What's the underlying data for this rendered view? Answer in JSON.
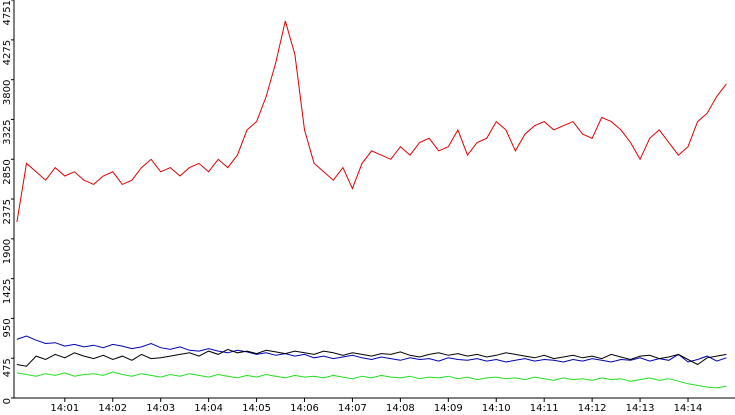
{
  "chart_data": {
    "type": "line",
    "x": [
      0,
      0.2,
      0.4,
      0.6,
      0.8,
      1,
      1.2,
      1.4,
      1.6,
      1.8,
      2,
      2.2,
      2.4,
      2.6,
      2.8,
      3,
      3.2,
      3.4,
      3.6,
      3.8,
      4,
      4.2,
      4.4,
      4.6,
      4.8,
      5,
      5.2,
      5.4,
      5.6,
      5.8,
      6,
      6.2,
      6.4,
      6.6,
      6.8,
      7,
      7.2,
      7.4,
      7.6,
      7.8,
      8,
      8.2,
      8.4,
      8.6,
      8.8,
      9,
      9.2,
      9.4,
      9.6,
      9.8,
      10,
      10.2,
      10.4,
      10.6,
      10.8,
      11,
      11.2,
      11.4,
      11.6,
      11.8,
      12,
      12.2,
      12.4,
      12.6,
      12.8,
      13,
      13.2,
      13.4,
      13.6,
      13.8,
      14,
      14.2,
      14.4,
      14.6,
      14.8
    ],
    "series": [
      {
        "color": "#e00000",
        "values": [
          2100,
          2800,
          2700,
          2600,
          2750,
          2650,
          2700,
          2600,
          2550,
          2650,
          2700,
          2550,
          2600,
          2750,
          2850,
          2700,
          2750,
          2650,
          2750,
          2800,
          2700,
          2850,
          2750,
          2900,
          3200,
          3300,
          3600,
          4000,
          4500,
          4100,
          3200,
          2800,
          2700,
          2600,
          2750,
          2500,
          2800,
          2950,
          2900,
          2850,
          3000,
          2900,
          3050,
          3100,
          2950,
          3000,
          3200,
          2900,
          3050,
          3100,
          3300,
          3200,
          2950,
          3150,
          3250,
          3300,
          3200,
          3250,
          3300,
          3150,
          3100,
          3350,
          3300,
          3200,
          3050,
          2850,
          3100,
          3200,
          3050,
          2900,
          3000,
          3300,
          3400,
          3600,
          3750
        ]
      },
      {
        "color": "#0000b0",
        "values": [
          700,
          740,
          690,
          650,
          660,
          620,
          640,
          610,
          630,
          600,
          640,
          620,
          590,
          610,
          650,
          600,
          580,
          610,
          570,
          560,
          590,
          560,
          540,
          570,
          550,
          520,
          540,
          510,
          530,
          500,
          520,
          480,
          500,
          470,
          490,
          510,
          480,
          460,
          490,
          470,
          450,
          480,
          460,
          470,
          440,
          480,
          460,
          450,
          470,
          440,
          460,
          430,
          450,
          470,
          440,
          460,
          450,
          430,
          460,
          440,
          470,
          450,
          430,
          460,
          450,
          480,
          440,
          470,
          450,
          520,
          430,
          460,
          500,
          440,
          480
        ]
      },
      {
        "color": "#000000",
        "values": [
          400,
          380,
          500,
          460,
          520,
          480,
          540,
          500,
          470,
          510,
          460,
          500,
          450,
          520,
          470,
          480,
          500,
          520,
          540,
          500,
          560,
          520,
          580,
          540,
          560,
          530,
          570,
          550,
          530,
          560,
          540,
          520,
          560,
          540,
          510,
          540,
          520,
          500,
          530,
          520,
          550,
          510,
          490,
          520,
          540,
          510,
          530,
          500,
          520,
          490,
          510,
          540,
          520,
          500,
          480,
          510,
          470,
          490,
          510,
          480,
          500,
          470,
          520,
          490,
          460,
          500,
          510,
          470,
          490,
          520,
          460,
          400,
          480,
          500,
          520
        ]
      },
      {
        "color": "#22dd22",
        "values": [
          300,
          280,
          260,
          290,
          270,
          300,
          260,
          280,
          290,
          270,
          310,
          280,
          260,
          290,
          270,
          250,
          280,
          260,
          290,
          270,
          250,
          280,
          260,
          240,
          270,
          250,
          280,
          260,
          240,
          270,
          250,
          260,
          240,
          270,
          250,
          230,
          260,
          240,
          270,
          250,
          240,
          260,
          230,
          250,
          240,
          260,
          230,
          250,
          220,
          240,
          250,
          230,
          240,
          220,
          250,
          230,
          210,
          240,
          220,
          230,
          210,
          240,
          220,
          230,
          200,
          220,
          240,
          210,
          230,
          200,
          170,
          150,
          130,
          120,
          140
        ]
      }
    ],
    "xlim": [
      -0.06,
      14.98
    ],
    "xticks": [
      {
        "value": 1,
        "label": "14:01"
      },
      {
        "value": 2,
        "label": "14:02"
      },
      {
        "value": 3,
        "label": "14:03"
      },
      {
        "value": 4,
        "label": "14:04"
      },
      {
        "value": 5,
        "label": "14:05"
      },
      {
        "value": 6,
        "label": "14:06"
      },
      {
        "value": 7,
        "label": "14:07"
      },
      {
        "value": 8,
        "label": "14:08"
      },
      {
        "value": 9,
        "label": "14:09"
      },
      {
        "value": 10,
        "label": "14:10"
      },
      {
        "value": 11,
        "label": "14:11"
      },
      {
        "value": 12,
        "label": "14:12"
      },
      {
        "value": 13,
        "label": "14:13"
      },
      {
        "value": 14,
        "label": "14:14"
      }
    ],
    "ylim": [
      0,
      4751
    ],
    "yticks": [
      0,
      475,
      950,
      1425,
      1900,
      2375,
      2850,
      3325,
      3800,
      4275,
      4751
    ]
  }
}
